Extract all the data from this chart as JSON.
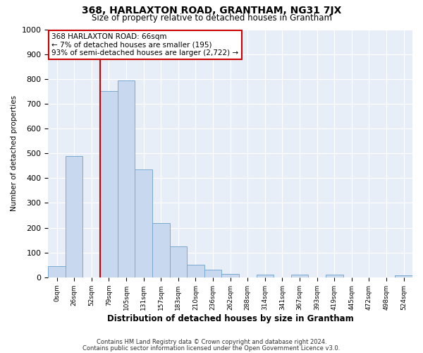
{
  "title": "368, HARLAXTON ROAD, GRANTHAM, NG31 7JX",
  "subtitle": "Size of property relative to detached houses in Grantham",
  "xlabel": "Distribution of detached houses by size in Grantham",
  "ylabel": "Number of detached properties",
  "bin_labels": [
    "0sqm",
    "26sqm",
    "52sqm",
    "79sqm",
    "105sqm",
    "131sqm",
    "157sqm",
    "183sqm",
    "210sqm",
    "236sqm",
    "262sqm",
    "288sqm",
    "314sqm",
    "341sqm",
    "367sqm",
    "393sqm",
    "419sqm",
    "445sqm",
    "472sqm",
    "498sqm",
    "524sqm"
  ],
  "bar_values": [
    44,
    490,
    0,
    750,
    795,
    435,
    220,
    125,
    50,
    30,
    15,
    0,
    10,
    0,
    10,
    0,
    10,
    0,
    0,
    0,
    8
  ],
  "bar_color": "#c8d8ee",
  "bar_edge_color": "#7aaad0",
  "property_line_x": 2.5,
  "property_line_label": "368 HARLAXTON ROAD: 66sqm",
  "annotation_line1": "← 7% of detached houses are smaller (195)",
  "annotation_line2": "93% of semi-detached houses are larger (2,722) →",
  "annotation_box_color": "#ffffff",
  "annotation_box_edge": "#cc0000",
  "vline_color": "#cc0000",
  "ylim": [
    0,
    1000
  ],
  "yticks": [
    0,
    100,
    200,
    300,
    400,
    500,
    600,
    700,
    800,
    900,
    1000
  ],
  "footnote1": "Contains HM Land Registry data © Crown copyright and database right 2024.",
  "footnote2": "Contains public sector information licensed under the Open Government Licence v3.0.",
  "bg_color": "#ffffff",
  "plot_bg_color": "#e8eef8",
  "grid_color": "#ffffff"
}
